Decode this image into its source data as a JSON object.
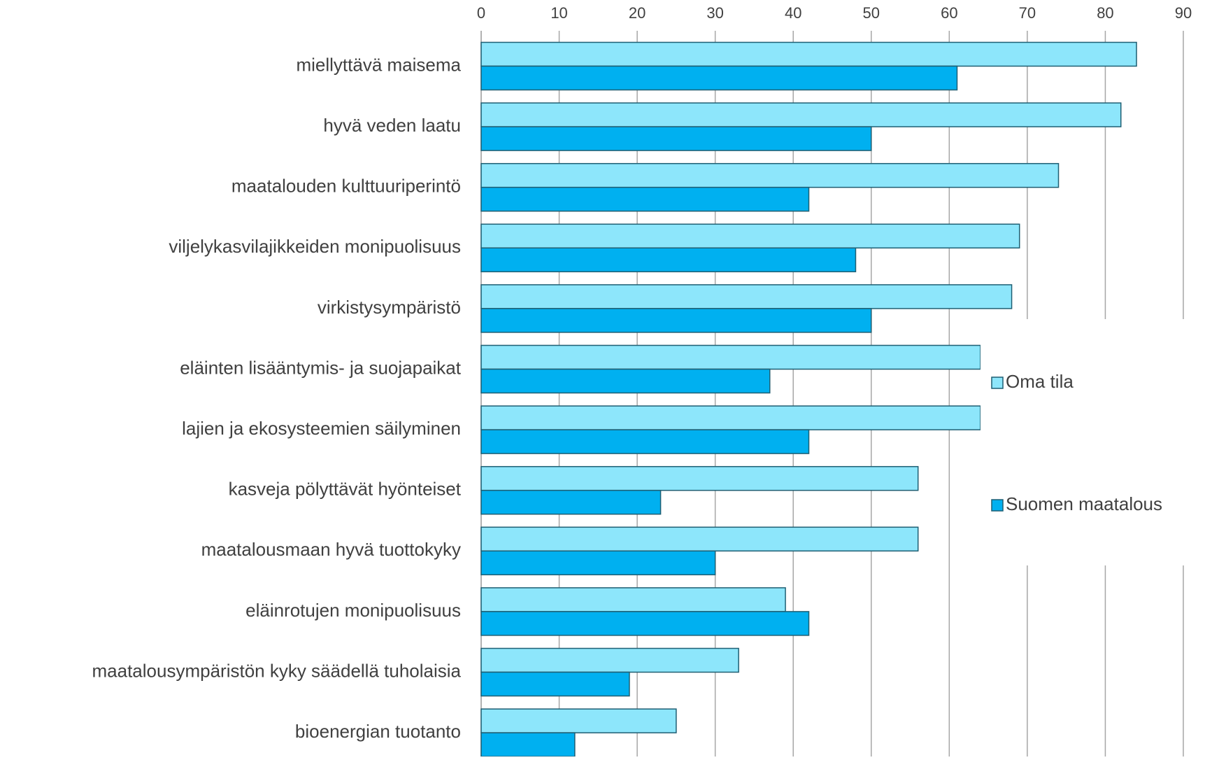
{
  "chart_data": {
    "type": "barh",
    "categories": [
      "miellyttävä maisema",
      "hyvä veden laatu",
      "maatalouden kulttuuriperintö",
      "viljelykasvilajikkeiden  monipuolisuus",
      "virkistysympäristö",
      "eläinten lisääntymis- ja suojapaikat",
      "lajien ja ekosysteemien säilyminen",
      "kasveja pölyttävät hyönteiset",
      "maatalousmaan hyvä tuottokyky",
      "eläinrotujen monipuolisuus",
      "maatalousympäristön kyky säädellä tuholaisia",
      "bioenergian tuotanto"
    ],
    "series": [
      {
        "name": "Oma tila",
        "color": "#8de6fb",
        "values": [
          84,
          82,
          74,
          69,
          68,
          64,
          64,
          56,
          56,
          39,
          33,
          25
        ]
      },
      {
        "name": "Suomen maatalous",
        "color": "#00b0f0",
        "values": [
          61,
          50,
          42,
          48,
          50,
          37,
          42,
          23,
          30,
          42,
          19,
          12
        ]
      }
    ],
    "xlim": [
      0,
      90
    ],
    "xticks": [
      0,
      10,
      20,
      30,
      40,
      50,
      60,
      70,
      80,
      90
    ],
    "grid": true,
    "legend": "right"
  }
}
